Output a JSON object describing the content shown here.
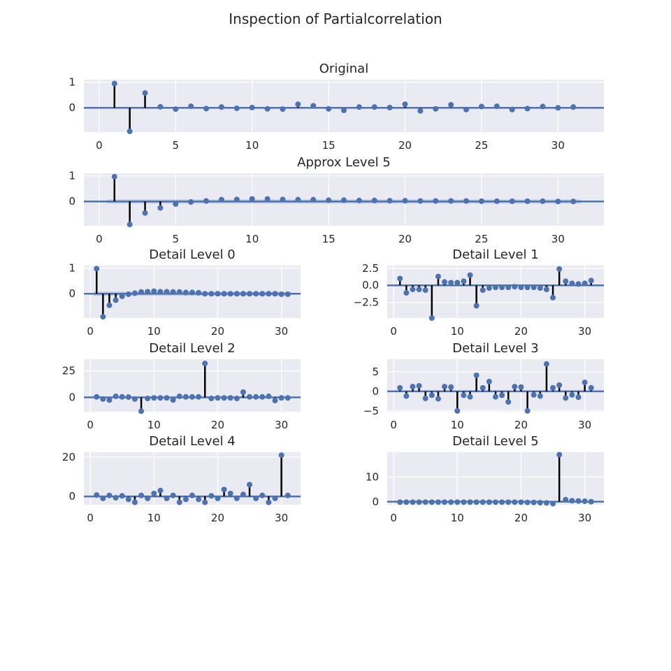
{
  "title": "Inspection of Partialcorrelation",
  "colors": {
    "marker": "#4c72b0",
    "stem": "#000000",
    "background": "#eaeaf2",
    "grid": "#ffffff",
    "confidence_band": "#4c72b0"
  },
  "chart_data": [
    {
      "type": "stem",
      "title": "Original",
      "x": [
        1,
        2,
        3,
        4,
        5,
        6,
        7,
        8,
        9,
        10,
        11,
        12,
        13,
        14,
        15,
        16,
        17,
        18,
        19,
        20,
        21,
        22,
        23,
        24,
        25,
        26,
        27,
        28,
        29,
        30,
        31
      ],
      "values": [
        0.95,
        -0.92,
        0.58,
        0.04,
        -0.05,
        0.06,
        -0.03,
        0.03,
        -0.02,
        0.01,
        -0.04,
        -0.05,
        0.14,
        0.08,
        -0.04,
        -0.1,
        0.03,
        0.03,
        0.01,
        0.14,
        -0.12,
        -0.04,
        0.12,
        -0.07,
        0.05,
        0.06,
        -0.07,
        -0.03,
        0.05,
        0.0,
        0.03
      ],
      "xlim": [
        -1,
        33
      ],
      "ylim": [
        -0.95,
        1.1
      ],
      "xticks": [
        0,
        5,
        10,
        15,
        20,
        25,
        30
      ],
      "yticks": [
        0,
        1
      ],
      "confidence_band": 0.0
    },
    {
      "type": "stem",
      "title": "Approx Level 5",
      "x": [
        1,
        2,
        3,
        4,
        5,
        6,
        7,
        8,
        9,
        10,
        11,
        12,
        13,
        14,
        15,
        16,
        17,
        18,
        19,
        20,
        21,
        22,
        23,
        24,
        25,
        26,
        27,
        28,
        29,
        30,
        31
      ],
      "values": [
        0.97,
        -0.9,
        -0.45,
        -0.25,
        -0.1,
        -0.02,
        0.02,
        0.07,
        0.08,
        0.1,
        0.1,
        0.08,
        0.07,
        0.07,
        0.05,
        0.05,
        0.04,
        0.04,
        0.03,
        0.03,
        0.02,
        0.02,
        0.02,
        0.02,
        0.01,
        0.01,
        0.01,
        0.01,
        0.01,
        0.0,
        0.0
      ],
      "xlim": [
        -1,
        33
      ],
      "ylim": [
        -0.95,
        1.1
      ],
      "xticks": [
        0,
        5,
        10,
        15,
        20,
        25,
        30
      ],
      "yticks": [
        0,
        1
      ],
      "confidence_band": 0.08
    },
    {
      "type": "stem",
      "title": "Detail Level 0",
      "x": [
        1,
        2,
        3,
        4,
        5,
        6,
        7,
        8,
        9,
        10,
        11,
        12,
        13,
        14,
        15,
        16,
        17,
        18,
        19,
        20,
        21,
        22,
        23,
        24,
        25,
        26,
        27,
        28,
        29,
        30,
        31
      ],
      "values": [
        0.98,
        -0.9,
        -0.45,
        -0.25,
        -0.1,
        -0.02,
        0.02,
        0.07,
        0.08,
        0.1,
        0.08,
        0.08,
        0.07,
        0.07,
        0.05,
        0.05,
        0.04,
        0.0,
        0.0,
        0.0,
        0.0,
        0.0,
        0.0,
        0.0,
        0.0,
        0.0,
        0.0,
        0.0,
        0.0,
        -0.02,
        -0.02
      ],
      "xlim": [
        -1,
        33
      ],
      "ylim": [
        -0.95,
        1.1
      ],
      "xticks": [
        0,
        10,
        20,
        30
      ],
      "yticks": [
        0,
        1
      ],
      "confidence_band": 0.08
    },
    {
      "type": "stem",
      "title": "Detail Level 1",
      "x": [
        1,
        2,
        3,
        4,
        5,
        6,
        7,
        8,
        9,
        10,
        11,
        12,
        13,
        14,
        15,
        16,
        17,
        18,
        19,
        20,
        21,
        22,
        23,
        24,
        25,
        26,
        27,
        28,
        29,
        30,
        31
      ],
      "values": [
        1.0,
        -1.1,
        -0.6,
        -0.6,
        -0.7,
        -4.8,
        1.3,
        0.5,
        0.4,
        0.4,
        0.6,
        1.5,
        -3.0,
        -0.7,
        -0.4,
        -0.3,
        -0.3,
        -0.3,
        -0.2,
        -0.3,
        -0.3,
        -0.3,
        -0.4,
        -0.6,
        -1.8,
        2.4,
        0.6,
        0.3,
        0.2,
        0.3,
        0.7
      ],
      "xlim": [
        -1,
        33
      ],
      "ylim": [
        -4.8,
        2.9
      ],
      "xticks": [
        0,
        10,
        20,
        30
      ],
      "yticks": [
        -2.5,
        0,
        2.5
      ],
      "ytick_labels": [
        "−2.5",
        "0.0",
        "2.5"
      ],
      "confidence_band": 0.0
    },
    {
      "type": "stem",
      "title": "Detail Level 2",
      "x": [
        1,
        2,
        3,
        4,
        5,
        6,
        7,
        8,
        9,
        10,
        11,
        12,
        13,
        14,
        15,
        16,
        17,
        18,
        19,
        20,
        21,
        22,
        23,
        24,
        25,
        26,
        27,
        28,
        29,
        30,
        31
      ],
      "values": [
        0.5,
        -1.5,
        -2.5,
        1.0,
        0.5,
        0.3,
        -1.5,
        -13.0,
        -1.0,
        -0.5,
        -0.5,
        -0.5,
        -2.5,
        1.0,
        0.5,
        0.5,
        0.5,
        32.0,
        -1.0,
        -0.5,
        -0.5,
        -0.5,
        -1.0,
        5.0,
        0.5,
        0.5,
        0.5,
        1.0,
        -3.0,
        -0.5,
        -0.5
      ],
      "xlim": [
        -1,
        33
      ],
      "ylim": [
        -13.5,
        36
      ],
      "xticks": [
        0,
        10,
        20,
        30
      ],
      "yticks": [
        0,
        25
      ],
      "confidence_band": 0.0
    },
    {
      "type": "stem",
      "title": "Detail Level 3",
      "x": [
        1,
        2,
        3,
        4,
        5,
        6,
        7,
        8,
        9,
        10,
        11,
        12,
        13,
        14,
        15,
        16,
        17,
        18,
        19,
        20,
        21,
        22,
        23,
        24,
        25,
        26,
        27,
        28,
        29,
        30,
        31
      ],
      "values": [
        0.9,
        -1.2,
        1.2,
        1.4,
        -1.8,
        -1.0,
        -1.9,
        1.2,
        1.1,
        -5.0,
        -1.0,
        -1.4,
        4.1,
        0.9,
        2.5,
        -1.4,
        -1.0,
        -2.7,
        1.2,
        1.1,
        -5.0,
        -0.9,
        -1.2,
        7.0,
        0.9,
        1.6,
        -1.7,
        -0.9,
        -1.5,
        2.3,
        0.9
      ],
      "xlim": [
        -1,
        33
      ],
      "ylim": [
        -5.2,
        8.2
      ],
      "xticks": [
        0,
        10,
        20,
        30
      ],
      "yticks": [
        -5,
        0,
        5
      ],
      "ytick_labels": [
        "−5",
        "0",
        "5"
      ],
      "confidence_band": 0.0
    },
    {
      "type": "stem",
      "title": "Detail Level 4",
      "x": [
        1,
        2,
        3,
        4,
        5,
        6,
        7,
        8,
        9,
        10,
        11,
        12,
        13,
        14,
        15,
        16,
        17,
        18,
        19,
        20,
        21,
        22,
        23,
        24,
        25,
        26,
        27,
        28,
        29,
        30,
        31
      ],
      "values": [
        0.7,
        -1.0,
        0.5,
        -0.7,
        0.3,
        -1.5,
        -3.0,
        0.5,
        -1.0,
        1.5,
        3.0,
        -1.0,
        0.5,
        -3.0,
        -1.5,
        0.5,
        -1.5,
        -3.0,
        0.3,
        -1.0,
        3.5,
        1.5,
        -1.0,
        1.0,
        6.0,
        -1.0,
        0.5,
        -3.0,
        -1.0,
        21.0,
        0.5
      ],
      "xlim": [
        -1,
        33
      ],
      "ylim": [
        -4.2,
        22.5
      ],
      "xticks": [
        0,
        10,
        20,
        30
      ],
      "yticks": [
        0,
        20
      ],
      "confidence_band": 0.0
    },
    {
      "type": "stem",
      "title": "Detail Level 5",
      "x": [
        1,
        2,
        3,
        4,
        5,
        6,
        7,
        8,
        9,
        10,
        11,
        12,
        13,
        14,
        15,
        16,
        17,
        18,
        19,
        20,
        21,
        22,
        23,
        24,
        25,
        26,
        27,
        28,
        29,
        30,
        31
      ],
      "values": [
        -0.2,
        -0.2,
        -0.2,
        -0.2,
        -0.2,
        -0.2,
        -0.2,
        -0.2,
        -0.2,
        -0.2,
        -0.2,
        -0.2,
        -0.2,
        -0.2,
        -0.2,
        -0.2,
        -0.2,
        -0.2,
        -0.2,
        -0.2,
        -0.3,
        -0.3,
        -0.4,
        -0.5,
        -0.8,
        19.0,
        0.8,
        0.4,
        0.3,
        0.2,
        0.0
      ],
      "xlim": [
        -1,
        33
      ],
      "ylim": [
        -1.2,
        20
      ],
      "xticks": [
        0,
        10,
        20,
        30
      ],
      "yticks": [
        0,
        10
      ],
      "confidence_band": 0.0
    }
  ]
}
